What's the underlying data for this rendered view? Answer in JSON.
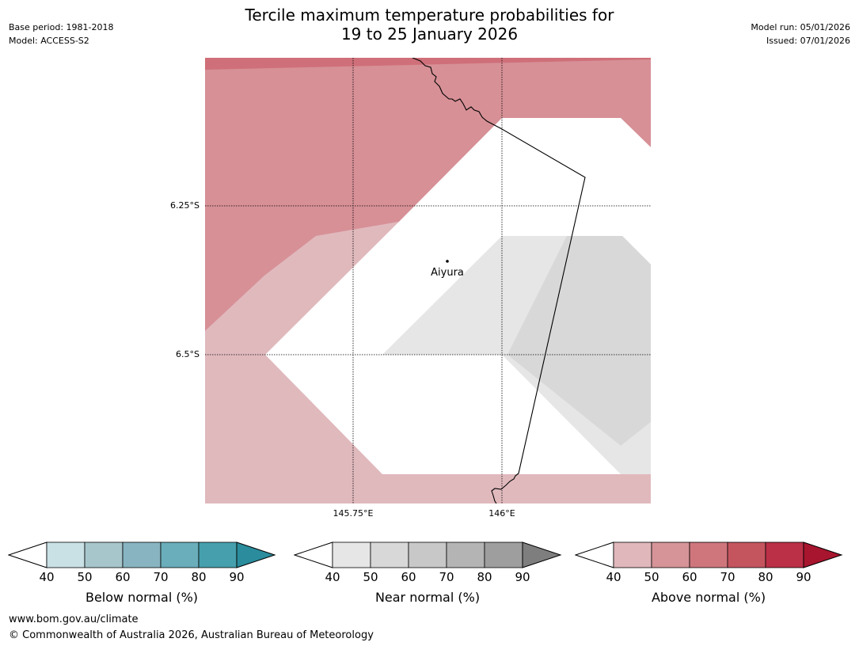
{
  "header": {
    "title_line1": "Tercile maximum temperature probabilities for",
    "title_line2": "19 to 25 January 2026",
    "base_period": "Base period: 1981-2018",
    "model": "Model: ACCESS-S2",
    "model_run": "Model run: 05/01/2026",
    "issued": "Issued: 07/01/2026"
  },
  "map": {
    "lat_labels": [
      "6.25°S",
      "6.5°S"
    ],
    "lon_labels": [
      "145.75°E",
      "146°E"
    ],
    "place": "Aiyura",
    "colors": {
      "above_50": "#d69096",
      "above_40": "#e0b9bd",
      "above_60": "#cf6f79",
      "near_40": "#e6e6e6",
      "near_50": "#d8d8d8",
      "no_dominant": "#ffffff"
    }
  },
  "colorbars": [
    {
      "title": "Below normal (%)",
      "ticks": [
        "40",
        "50",
        "60",
        "70",
        "80",
        "90"
      ],
      "colors": [
        "#c9e0e5",
        "#a7c6cc",
        "#88b4c1",
        "#6aaebb",
        "#469fad"
      ],
      "extend_color": "#2a8c9c"
    },
    {
      "title": "Near normal (%)",
      "ticks": [
        "40",
        "50",
        "60",
        "70",
        "80",
        "90"
      ],
      "colors": [
        "#e6e6e6",
        "#d8d8d8",
        "#c8c8c8",
        "#b4b4b4",
        "#9e9e9e"
      ],
      "extend_color": "#7e7e7e"
    },
    {
      "title": "Above normal (%)",
      "ticks": [
        "40",
        "50",
        "60",
        "70",
        "80",
        "90"
      ],
      "colors": [
        "#e0b7bb",
        "#d69498",
        "#cf767d",
        "#c4555f",
        "#bb3047"
      ],
      "extend_color": "#a8152e"
    }
  ],
  "footer": {
    "url": "www.bom.gov.au/climate",
    "copyright": "© Commonwealth of Australia 2026, Australian Bureau of Meteorology"
  }
}
